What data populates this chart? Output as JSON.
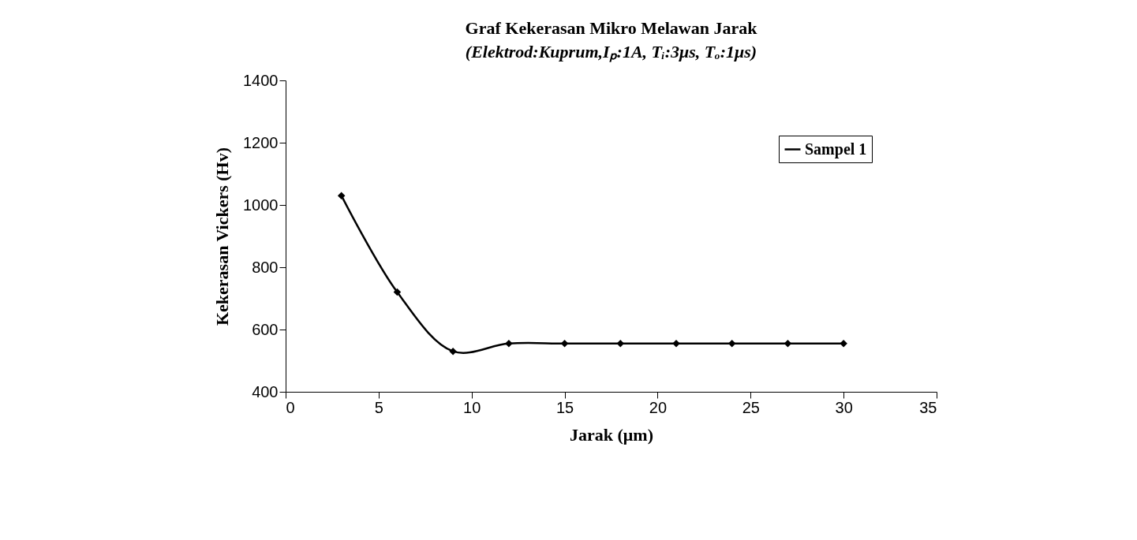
{
  "chart_data": {
    "type": "line",
    "title": "Graf Kekerasan Mikro Melawan Jarak",
    "subtitle": "(Elektrod:Kuprum,Iₚ:1A, Tᵢ:3μs, Tₒ:1μs)",
    "xlabel": "Jarak (μm)",
    "ylabel": "Kekerasan Vickers (Hv)",
    "x": [
      3,
      6,
      9,
      12,
      15,
      18,
      21,
      24,
      27,
      30
    ],
    "series": [
      {
        "name": "Sampel 1",
        "color": "#000000",
        "values": [
          1030,
          720,
          530,
          555,
          555,
          555,
          555,
          555,
          555,
          555
        ]
      }
    ],
    "xlim": [
      0,
      35
    ],
    "xticks": [
      0,
      5,
      10,
      15,
      20,
      25,
      30,
      35
    ],
    "ylim": [
      400,
      1400
    ],
    "yticks": [
      400,
      600,
      800,
      1000,
      1200,
      1400
    ],
    "legend": "top right",
    "marker": "diamond",
    "line_style": "solid"
  }
}
